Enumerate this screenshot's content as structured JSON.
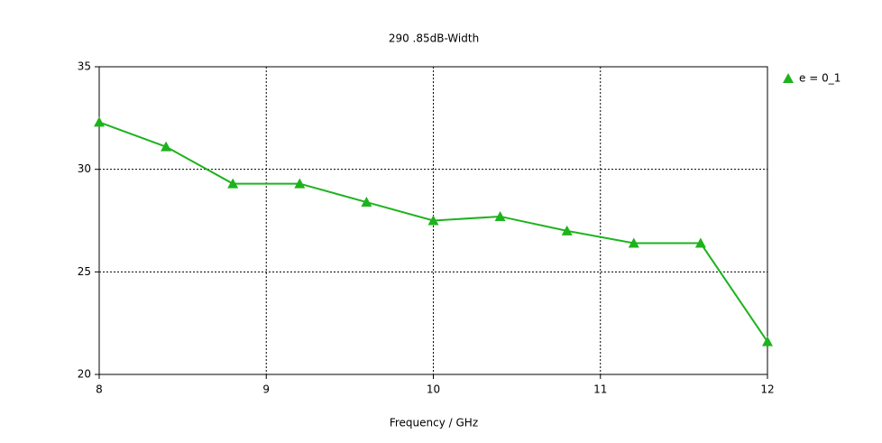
{
  "chart_data": {
    "type": "line",
    "title": "290  .85dB-Width",
    "x_label": "Frequency / GHz",
    "x": [
      8,
      8.4,
      8.8,
      9.2,
      9.6,
      10,
      10.4,
      10.8,
      11.2,
      11.6,
      12
    ],
    "series": [
      {
        "name": "e = 0_1",
        "color": "#1db31d",
        "values": [
          32.3,
          31.1,
          29.3,
          29.3,
          28.4,
          27.5,
          27.7,
          27.0,
          26.4,
          26.4,
          21.6
        ]
      }
    ],
    "xlim": [
      8,
      12
    ],
    "xticks": [
      8,
      9,
      10,
      11,
      12
    ],
    "ylim": [
      20,
      35
    ],
    "yticks": [
      20,
      25,
      30,
      35
    ],
    "grid": true,
    "legend": "right"
  }
}
